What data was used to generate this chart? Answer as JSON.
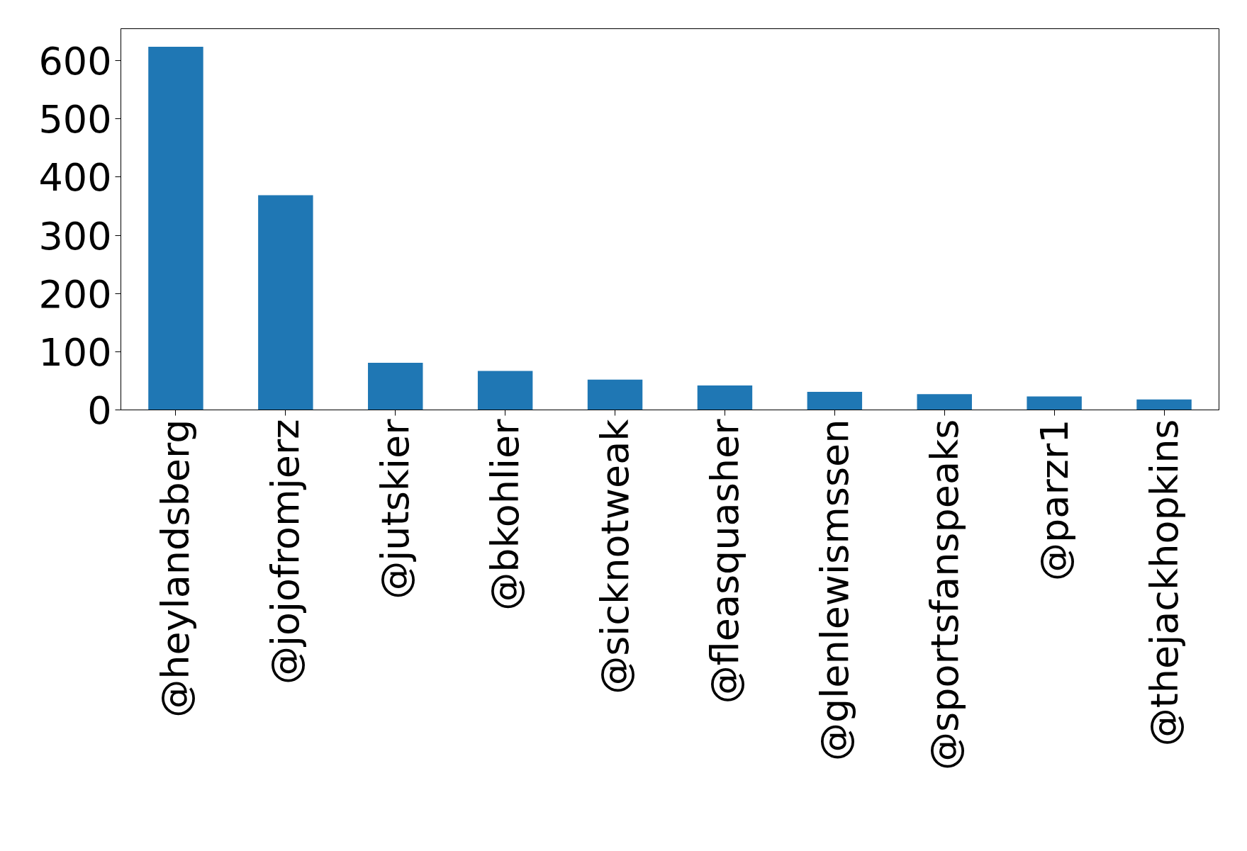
{
  "chart_data": {
    "type": "bar",
    "categories": [
      "@heylandsberg",
      "@jojofromjerz",
      "@jutskier",
      "@bkohlier",
      "@sicknotweak",
      "@fleasquasher",
      "@glenlewismssen",
      "@sportsfanspeaks",
      "@parzr1",
      "@thejackhopkins"
    ],
    "values": [
      624,
      369,
      81,
      67,
      52,
      42,
      31,
      27,
      23,
      18
    ],
    "color": "#1f77b4",
    "ylim": [
      0,
      655
    ],
    "yticks": [
      0,
      100,
      200,
      300,
      400,
      500,
      600
    ],
    "grid": false
  }
}
